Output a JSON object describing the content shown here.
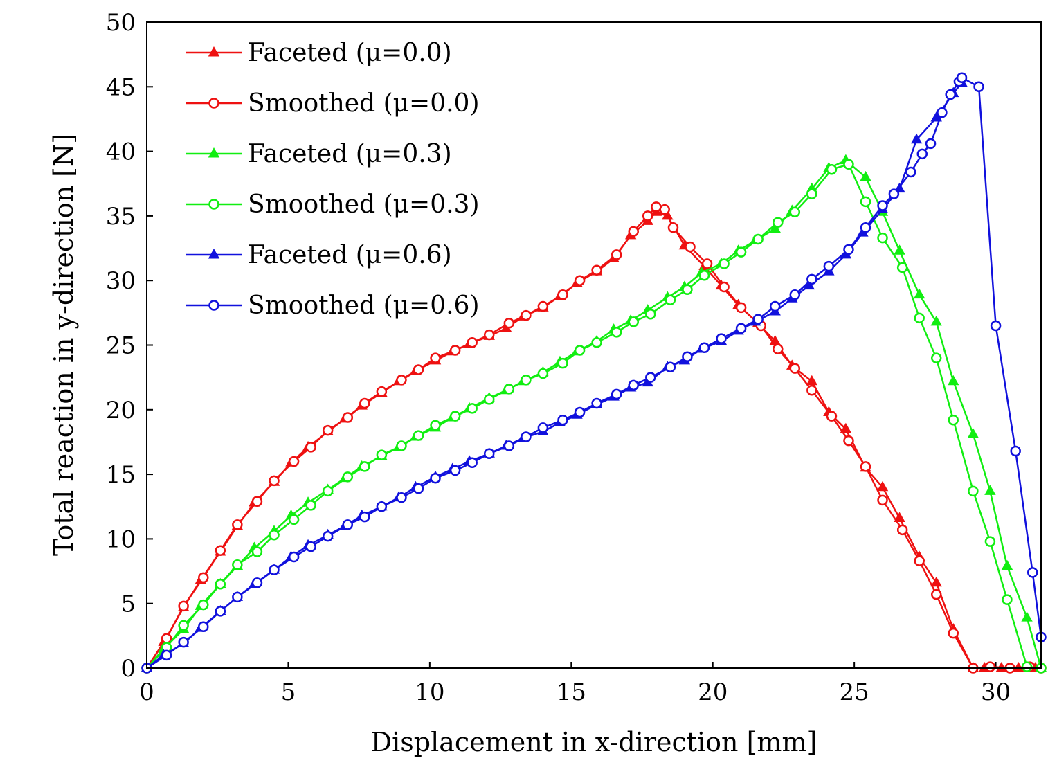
{
  "chart_data": {
    "type": "line",
    "title": "",
    "xlabel": "Displacement in x-direction [mm]",
    "ylabel": "Total reaction in y-direction [N]",
    "xlim": [
      0,
      31.6
    ],
    "ylim": [
      0,
      50
    ],
    "xticks": [
      0,
      5,
      10,
      15,
      20,
      25,
      30
    ],
    "yticks": [
      0,
      5,
      10,
      15,
      20,
      25,
      30,
      35,
      40,
      45,
      50
    ],
    "grid": false,
    "legend_position": "top-left",
    "series": [
      {
        "name": "Faceted (μ=0.0)",
        "color": "#ee1111",
        "marker": "triangle",
        "x": [
          0,
          0.6,
          1.3,
          1.9,
          2.6,
          3.2,
          3.8,
          4.5,
          5.1,
          5.7,
          6.4,
          7.0,
          7.6,
          8.3,
          8.9,
          9.5,
          10.2,
          10.8,
          11.4,
          12.1,
          12.7,
          13.3,
          14.0,
          14.6,
          15.2,
          15.9,
          16.5,
          17.1,
          17.7,
          18.0,
          18.4,
          19.0,
          19.7,
          20.3,
          20.9,
          21.6,
          22.2,
          22.8,
          23.5,
          24.1,
          24.7,
          25.4,
          26.0,
          26.6,
          27.3,
          27.9,
          28.5,
          29.2,
          29.6,
          30.2,
          30.8,
          31.4
        ],
        "y": [
          0,
          2.0,
          4.7,
          6.8,
          9.0,
          11.0,
          12.8,
          14.4,
          15.9,
          17.1,
          18.3,
          19.3,
          20.3,
          21.3,
          22.2,
          23.0,
          23.8,
          24.5,
          25.1,
          25.7,
          26.3,
          27.2,
          27.9,
          28.8,
          29.8,
          30.7,
          31.7,
          33.5,
          34.6,
          35.3,
          35.0,
          32.7,
          31.1,
          29.6,
          28.1,
          26.7,
          25.3,
          23.4,
          22.2,
          19.8,
          18.5,
          15.5,
          14.0,
          11.6,
          8.6,
          6.6,
          3.0,
          0,
          0,
          0,
          0,
          0
        ]
      },
      {
        "name": "Smoothed (μ=0.0)",
        "color": "#ee1111",
        "marker": "circle",
        "x": [
          0,
          0.7,
          1.3,
          2.0,
          2.6,
          3.2,
          3.9,
          4.5,
          5.2,
          5.8,
          6.4,
          7.1,
          7.7,
          8.3,
          9.0,
          9.6,
          10.2,
          10.9,
          11.5,
          12.1,
          12.8,
          13.4,
          14.0,
          14.7,
          15.3,
          15.9,
          16.6,
          17.2,
          17.7,
          18.0,
          18.3,
          18.6,
          19.2,
          19.8,
          20.4,
          21.0,
          21.7,
          22.3,
          22.9,
          23.5,
          24.2,
          24.8,
          25.4,
          26.0,
          26.7,
          27.3,
          27.9,
          28.5,
          29.2,
          29.8,
          30.5,
          31.2,
          31.6
        ],
        "y": [
          0,
          2.3,
          4.8,
          7.0,
          9.1,
          11.1,
          12.9,
          14.5,
          16.0,
          17.1,
          18.4,
          19.4,
          20.5,
          21.4,
          22.3,
          23.1,
          24.0,
          24.6,
          25.2,
          25.8,
          26.7,
          27.3,
          28.0,
          28.9,
          30.0,
          30.8,
          32.0,
          33.8,
          35.0,
          35.7,
          35.5,
          34.1,
          32.6,
          31.3,
          29.5,
          27.9,
          26.5,
          24.7,
          23.2,
          21.5,
          19.5,
          17.6,
          15.6,
          13.0,
          10.7,
          8.3,
          5.7,
          2.7,
          0.0,
          0.1,
          0,
          0.1,
          0
        ]
      },
      {
        "name": "Faceted (μ=0.3)",
        "color": "#11ee11",
        "marker": "triangle",
        "x": [
          0,
          0.6,
          1.3,
          1.9,
          2.6,
          3.2,
          3.8,
          4.5,
          5.1,
          5.7,
          6.4,
          7.0,
          7.6,
          8.3,
          8.9,
          9.5,
          10.2,
          10.8,
          11.4,
          12.1,
          12.7,
          13.3,
          14.0,
          14.6,
          15.2,
          15.9,
          16.5,
          17.1,
          17.7,
          18.4,
          19.0,
          19.6,
          20.3,
          20.9,
          21.5,
          22.2,
          22.8,
          23.5,
          24.1,
          24.7,
          25.4,
          26.0,
          26.6,
          27.3,
          27.9,
          28.5,
          29.2,
          29.8,
          30.4,
          31.1,
          31.6
        ],
        "y": [
          0,
          1.5,
          3.0,
          4.8,
          6.5,
          7.9,
          9.3,
          10.6,
          11.8,
          12.8,
          13.8,
          14.7,
          15.6,
          16.4,
          17.1,
          17.9,
          18.6,
          19.4,
          20.1,
          20.9,
          21.5,
          22.2,
          22.9,
          23.7,
          24.5,
          25.3,
          26.2,
          26.9,
          27.7,
          28.7,
          29.5,
          30.6,
          31.3,
          32.3,
          33.1,
          34.0,
          35.4,
          37.1,
          38.7,
          39.3,
          38.0,
          35.3,
          32.3,
          28.9,
          26.8,
          22.2,
          18.1,
          13.7,
          7.9,
          3.9,
          0
        ]
      },
      {
        "name": "Smoothed (μ=0.3)",
        "color": "#11ee11",
        "marker": "circle",
        "x": [
          0,
          0.7,
          1.3,
          2.0,
          2.6,
          3.2,
          3.9,
          4.5,
          5.2,
          5.8,
          6.4,
          7.1,
          7.7,
          8.3,
          9.0,
          9.6,
          10.2,
          10.9,
          11.5,
          12.1,
          12.8,
          13.4,
          14.0,
          14.7,
          15.3,
          15.9,
          16.6,
          17.2,
          17.8,
          18.5,
          19.1,
          19.7,
          20.4,
          21.0,
          21.6,
          22.3,
          22.9,
          23.5,
          24.2,
          24.8,
          25.4,
          26.0,
          26.7,
          27.3,
          27.9,
          28.5,
          29.2,
          29.8,
          30.4,
          31.1,
          31.6
        ],
        "y": [
          0,
          1.6,
          3.3,
          4.9,
          6.5,
          8.0,
          9.0,
          10.3,
          11.5,
          12.6,
          13.7,
          14.8,
          15.6,
          16.5,
          17.2,
          18.0,
          18.8,
          19.5,
          20.1,
          20.8,
          21.6,
          22.3,
          22.8,
          23.6,
          24.6,
          25.2,
          26.0,
          26.8,
          27.4,
          28.5,
          29.3,
          30.4,
          31.3,
          32.2,
          33.2,
          34.5,
          35.3,
          36.7,
          38.6,
          39.0,
          36.1,
          33.3,
          31.0,
          27.1,
          24.0,
          19.2,
          13.7,
          9.8,
          5.3,
          0.1,
          0
        ]
      },
      {
        "name": "Faceted (μ=0.6)",
        "color": "#1111dd",
        "marker": "triangle",
        "x": [
          0,
          0.6,
          1.3,
          1.9,
          2.6,
          3.2,
          3.8,
          4.5,
          5.1,
          5.7,
          6.4,
          7.0,
          7.6,
          8.3,
          8.9,
          9.5,
          10.2,
          10.8,
          11.4,
          12.1,
          12.7,
          13.3,
          14.0,
          14.6,
          15.2,
          15.9,
          16.5,
          17.1,
          17.7,
          18.4,
          19.0,
          19.6,
          20.3,
          20.9,
          21.5,
          22.2,
          22.8,
          23.4,
          24.1,
          24.7,
          25.3,
          26.0,
          26.6,
          27.2,
          27.9,
          28.5,
          28.8
        ],
        "y": [
          0,
          1.0,
          1.9,
          3.1,
          4.4,
          5.5,
          6.5,
          7.6,
          8.6,
          9.5,
          10.3,
          11.0,
          11.8,
          12.5,
          13.2,
          14.0,
          14.8,
          15.4,
          16.0,
          16.6,
          17.2,
          17.8,
          18.3,
          19.0,
          19.6,
          20.4,
          21.0,
          21.7,
          22.1,
          23.3,
          23.8,
          24.7,
          25.3,
          26.1,
          26.8,
          27.6,
          28.6,
          29.6,
          30.7,
          32.0,
          33.7,
          35.5,
          37.1,
          40.9,
          42.6,
          44.5,
          45.3
        ]
      },
      {
        "name": "Smoothed (μ=0.6)",
        "color": "#1111dd",
        "marker": "circle",
        "x": [
          0,
          0.7,
          1.3,
          2.0,
          2.6,
          3.2,
          3.9,
          4.5,
          5.2,
          5.8,
          6.4,
          7.1,
          7.7,
          8.3,
          9.0,
          9.6,
          10.2,
          10.9,
          11.5,
          12.1,
          12.8,
          13.4,
          14.0,
          14.7,
          15.3,
          15.9,
          16.6,
          17.2,
          17.8,
          18.5,
          19.1,
          19.7,
          20.3,
          21.0,
          21.6,
          22.2,
          22.9,
          23.5,
          24.1,
          24.8,
          25.4,
          26.0,
          26.4,
          27.0,
          27.4,
          27.7,
          28.1,
          28.4,
          28.7,
          28.8,
          29.4,
          30.0,
          30.7,
          31.3,
          31.6
        ],
        "y": [
          0,
          1.0,
          2.0,
          3.2,
          4.4,
          5.5,
          6.6,
          7.6,
          8.6,
          9.4,
          10.2,
          11.1,
          11.7,
          12.5,
          13.2,
          13.9,
          14.7,
          15.3,
          15.9,
          16.6,
          17.2,
          17.9,
          18.6,
          19.2,
          19.8,
          20.5,
          21.2,
          21.9,
          22.5,
          23.3,
          24.1,
          24.8,
          25.5,
          26.3,
          27.0,
          28.0,
          28.9,
          30.1,
          31.1,
          32.4,
          34.1,
          35.8,
          36.7,
          38.4,
          39.8,
          40.6,
          43.0,
          44.4,
          45.4,
          45.7,
          45.0,
          26.5,
          16.8,
          7.4,
          2.4
        ]
      }
    ]
  }
}
